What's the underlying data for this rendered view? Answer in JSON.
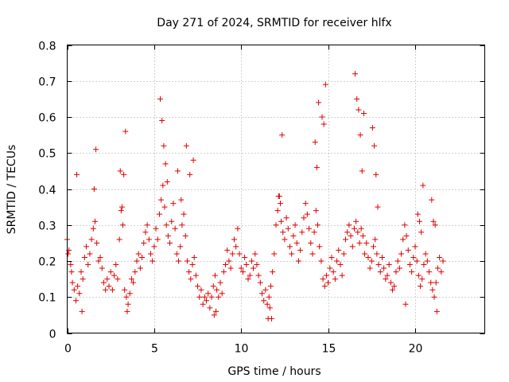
{
  "chart_data": {
    "type": "scatter",
    "title": "Day 271 of 2024, SRMTID for receiver hlfx",
    "xlabel": "GPS time / hours",
    "ylabel": "SRMTID / TECUs",
    "xlim": [
      0,
      24
    ],
    "ylim": [
      0,
      0.8
    ],
    "xticks": [
      0,
      5,
      10,
      15,
      20
    ],
    "xtick_labels": [
      "0",
      "5",
      "10",
      "15",
      "20"
    ],
    "yticks": [
      0,
      0.1,
      0.2,
      0.3,
      0.4,
      0.5,
      0.6,
      0.7,
      0.8
    ],
    "ytick_labels": [
      "0",
      "0.1",
      "0.2",
      "0.3",
      "0.4",
      "0.5",
      "0.6",
      "0.7",
      "0.8"
    ],
    "grid": true,
    "marker": "+",
    "color": "#e00000",
    "series": [
      {
        "name": "SRMTID",
        "x": [
          0.0,
          0.1,
          0.2,
          0.3,
          0.4,
          0.5,
          0.6,
          0.7,
          0.8,
          0.9,
          1.0,
          1.1,
          1.2,
          1.3,
          1.4,
          1.5,
          1.6,
          1.7,
          1.8,
          1.9,
          2.0,
          2.1,
          2.2,
          2.3,
          2.4,
          2.5,
          2.6,
          2.7,
          2.8,
          2.9,
          3.0,
          3.1,
          3.2,
          3.3,
          3.4,
          3.5,
          3.6,
          3.7,
          3.8,
          3.9,
          4.0,
          4.1,
          4.2,
          4.3,
          4.4,
          4.5,
          4.6,
          4.7,
          4.8,
          4.9,
          5.0,
          5.1,
          5.2,
          5.3,
          5.4,
          5.5,
          5.6,
          5.7,
          5.8,
          5.9,
          6.0,
          6.1,
          6.2,
          6.3,
          6.4,
          6.5,
          6.6,
          6.7,
          6.8,
          6.9,
          7.0,
          7.1,
          7.2,
          7.3,
          7.4,
          7.5,
          7.6,
          7.7,
          7.8,
          7.9,
          8.0,
          8.1,
          8.2,
          8.3,
          8.4,
          8.5,
          8.6,
          8.7,
          8.8,
          8.9,
          9.0,
          9.1,
          9.2,
          9.3,
          9.4,
          9.5,
          9.6,
          9.7,
          9.8,
          9.9,
          10.0,
          10.1,
          10.2,
          10.3,
          10.4,
          10.5,
          10.6,
          10.7,
          10.8,
          10.9,
          11.0,
          11.1,
          11.2,
          11.3,
          11.4,
          11.5,
          11.6,
          11.7,
          11.8,
          11.9,
          12.0,
          12.1,
          12.2,
          12.3,
          12.4,
          12.5,
          12.6,
          12.7,
          12.8,
          12.9,
          13.0,
          13.1,
          13.2,
          13.3,
          13.4,
          13.5,
          13.6,
          13.7,
          13.8,
          13.9,
          14.0,
          14.1,
          14.2,
          14.3,
          14.4,
          14.5,
          14.6,
          14.7,
          14.8,
          14.9,
          15.0,
          15.1,
          15.2,
          15.3,
          15.4,
          15.5,
          15.6,
          15.7,
          15.8,
          15.9,
          16.0,
          16.1,
          16.2,
          16.3,
          16.4,
          16.5,
          16.6,
          16.7,
          16.8,
          16.9,
          17.0,
          17.1,
          17.2,
          17.3,
          17.4,
          17.5,
          17.6,
          17.7,
          17.8,
          17.9,
          18.0,
          18.1,
          18.2,
          18.3,
          18.4,
          18.5,
          18.6,
          18.7,
          18.8,
          18.9,
          19.0,
          19.1,
          19.2,
          19.3,
          19.4,
          19.5,
          19.6,
          19.7,
          19.8,
          19.9,
          20.0,
          20.1,
          20.2,
          20.3,
          20.4,
          20.5,
          20.6,
          20.7,
          20.8,
          20.9,
          21.0,
          21.1,
          21.2,
          21.3,
          21.4,
          21.5,
          21.6,
          0.05,
          0.25,
          0.55,
          1.55,
          1.65,
          3.05,
          3.15,
          3.25,
          3.35,
          5.35,
          5.45,
          5.55,
          5.65,
          5.75,
          6.35,
          6.55,
          6.85,
          7.05,
          7.25,
          12.15,
          12.25,
          12.35,
          14.25,
          14.35,
          14.45,
          14.65,
          14.75,
          14.85,
          16.55,
          16.65,
          16.75,
          16.85,
          16.95,
          17.05,
          17.55,
          17.65,
          17.75,
          17.85,
          20.15,
          20.25,
          20.35,
          20.45,
          20.95,
          21.05,
          21.15,
          21.25,
          8.45,
          8.55,
          11.55,
          11.65,
          11.75,
          3.45,
          19.45,
          0.85
        ],
        "y": [
          0.26,
          0.23,
          0.19,
          0.14,
          0.12,
          0.09,
          0.13,
          0.11,
          0.17,
          0.15,
          0.21,
          0.24,
          0.19,
          0.22,
          0.26,
          0.29,
          0.31,
          0.25,
          0.2,
          0.21,
          0.18,
          0.14,
          0.12,
          0.15,
          0.13,
          0.17,
          0.12,
          0.16,
          0.19,
          0.15,
          0.26,
          0.34,
          0.3,
          0.12,
          0.1,
          0.08,
          0.11,
          0.15,
          0.14,
          0.17,
          0.2,
          0.22,
          0.18,
          0.21,
          0.25,
          0.28,
          0.3,
          0.26,
          0.22,
          0.2,
          0.24,
          0.29,
          0.26,
          0.33,
          0.37,
          0.41,
          0.35,
          0.3,
          0.27,
          0.25,
          0.31,
          0.36,
          0.29,
          0.22,
          0.2,
          0.24,
          0.3,
          0.33,
          0.27,
          0.2,
          0.17,
          0.15,
          0.19,
          0.21,
          0.16,
          0.13,
          0.1,
          0.12,
          0.08,
          0.1,
          0.09,
          0.11,
          0.07,
          0.1,
          0.13,
          0.16,
          0.12,
          0.1,
          0.14,
          0.11,
          0.17,
          0.19,
          0.23,
          0.2,
          0.18,
          0.22,
          0.26,
          0.24,
          0.29,
          0.22,
          0.18,
          0.17,
          0.21,
          0.19,
          0.15,
          0.16,
          0.2,
          0.18,
          0.22,
          0.19,
          0.16,
          0.14,
          0.11,
          0.09,
          0.12,
          0.08,
          0.1,
          0.13,
          0.17,
          0.22,
          0.3,
          0.34,
          0.38,
          0.31,
          0.28,
          0.26,
          0.32,
          0.29,
          0.24,
          0.22,
          0.27,
          0.3,
          0.25,
          0.2,
          0.23,
          0.28,
          0.32,
          0.36,
          0.33,
          0.29,
          0.25,
          0.22,
          0.28,
          0.34,
          0.3,
          0.24,
          0.2,
          0.15,
          0.13,
          0.16,
          0.14,
          0.18,
          0.21,
          0.17,
          0.15,
          0.2,
          0.23,
          0.19,
          0.16,
          0.22,
          0.26,
          0.28,
          0.3,
          0.27,
          0.24,
          0.29,
          0.31,
          0.28,
          0.25,
          0.29,
          0.27,
          0.22,
          0.25,
          0.21,
          0.18,
          0.2,
          0.24,
          0.26,
          0.22,
          0.19,
          0.17,
          0.21,
          0.18,
          0.15,
          0.16,
          0.19,
          0.14,
          0.12,
          0.13,
          0.17,
          0.2,
          0.18,
          0.22,
          0.26,
          0.3,
          0.27,
          0.23,
          0.19,
          0.17,
          0.21,
          0.24,
          0.2,
          0.16,
          0.13,
          0.15,
          0.19,
          0.22,
          0.2,
          0.17,
          0.14,
          0.12,
          0.1,
          0.14,
          0.18,
          0.21,
          0.17,
          0.2,
          0.22,
          0.17,
          0.44,
          0.4,
          0.51,
          0.45,
          0.35,
          0.44,
          0.56,
          0.65,
          0.59,
          0.52,
          0.47,
          0.42,
          0.45,
          0.37,
          0.52,
          0.44,
          0.48,
          0.38,
          0.36,
          0.55,
          0.53,
          0.46,
          0.64,
          0.6,
          0.58,
          0.69,
          0.72,
          0.65,
          0.62,
          0.55,
          0.45,
          0.61,
          0.57,
          0.52,
          0.44,
          0.35,
          0.33,
          0.31,
          0.28,
          0.41,
          0.37,
          0.31,
          0.3,
          0.06,
          0.05,
          0.06,
          0.04,
          0.07,
          0.04,
          0.06,
          0.08,
          0.06
        ]
      }
    ]
  }
}
